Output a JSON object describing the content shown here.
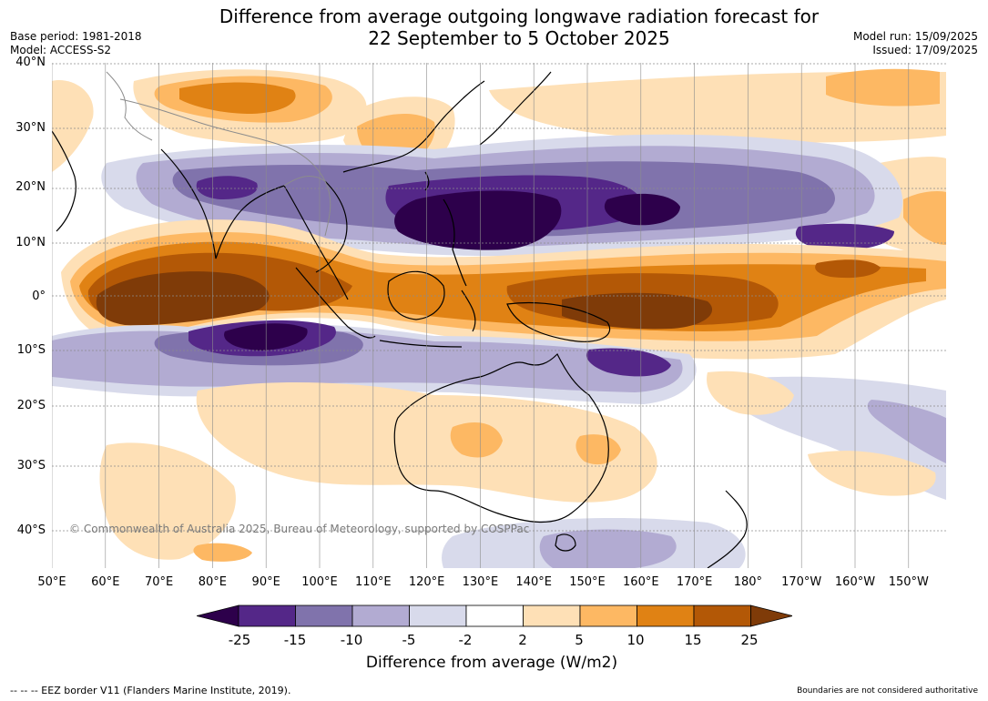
{
  "header": {
    "title_line1": "Difference from average outgoing longwave radiation forecast for",
    "title_line2": "22 September to 5 October 2025",
    "base_period": "Base period: 1981-2018",
    "model": "Model: ACCESS-S2",
    "model_run": "Model run: 15/09/2025",
    "issued": "Issued: 17/09/2025"
  },
  "map": {
    "lat_labels": [
      "40°N",
      "30°N",
      "20°N",
      "10°N",
      "0°",
      "10°S",
      "20°S",
      "30°S",
      "40°S"
    ],
    "lon_labels": [
      "50°E",
      "60°E",
      "70°E",
      "80°E",
      "90°E",
      "100°E",
      "110°E",
      "120°E",
      "130°E",
      "140°E",
      "150°E",
      "160°E",
      "170°E",
      "180°",
      "170°W",
      "160°W",
      "150°W"
    ],
    "copyright": "© Commonwealth of Australia 2025, Bureau of Meteorology, supported by COSPPac",
    "colors": {
      "d25": "#2d004b",
      "d15": "#542788",
      "d10": "#8073ac",
      "d5": "#b2abd2",
      "d2": "#d8daeb",
      "n": "#ffffff",
      "p2": "#fee0b6",
      "p5": "#fdb863",
      "p10": "#e08214",
      "p15": "#b35806",
      "p25": "#7f3b08",
      "land": "#000000",
      "border": "#8c8c8c"
    }
  },
  "colorbar": {
    "tick_labels": [
      "-25",
      "-15",
      "-10",
      "-5",
      "-2",
      "2",
      "5",
      "10",
      "15",
      "25"
    ],
    "title": "Difference from average (W/m2)",
    "colors": [
      "#2d004b",
      "#542788",
      "#8073ac",
      "#b2abd2",
      "#d8daeb",
      "#ffffff",
      "#fee0b6",
      "#fdb863",
      "#e08214",
      "#b35806",
      "#7f3b08"
    ]
  },
  "footer": {
    "eez": "--  --  -- EEZ border V11 (Flanders Marine Institute, 2019).",
    "boundary": "Boundaries are not considered authoritative"
  }
}
